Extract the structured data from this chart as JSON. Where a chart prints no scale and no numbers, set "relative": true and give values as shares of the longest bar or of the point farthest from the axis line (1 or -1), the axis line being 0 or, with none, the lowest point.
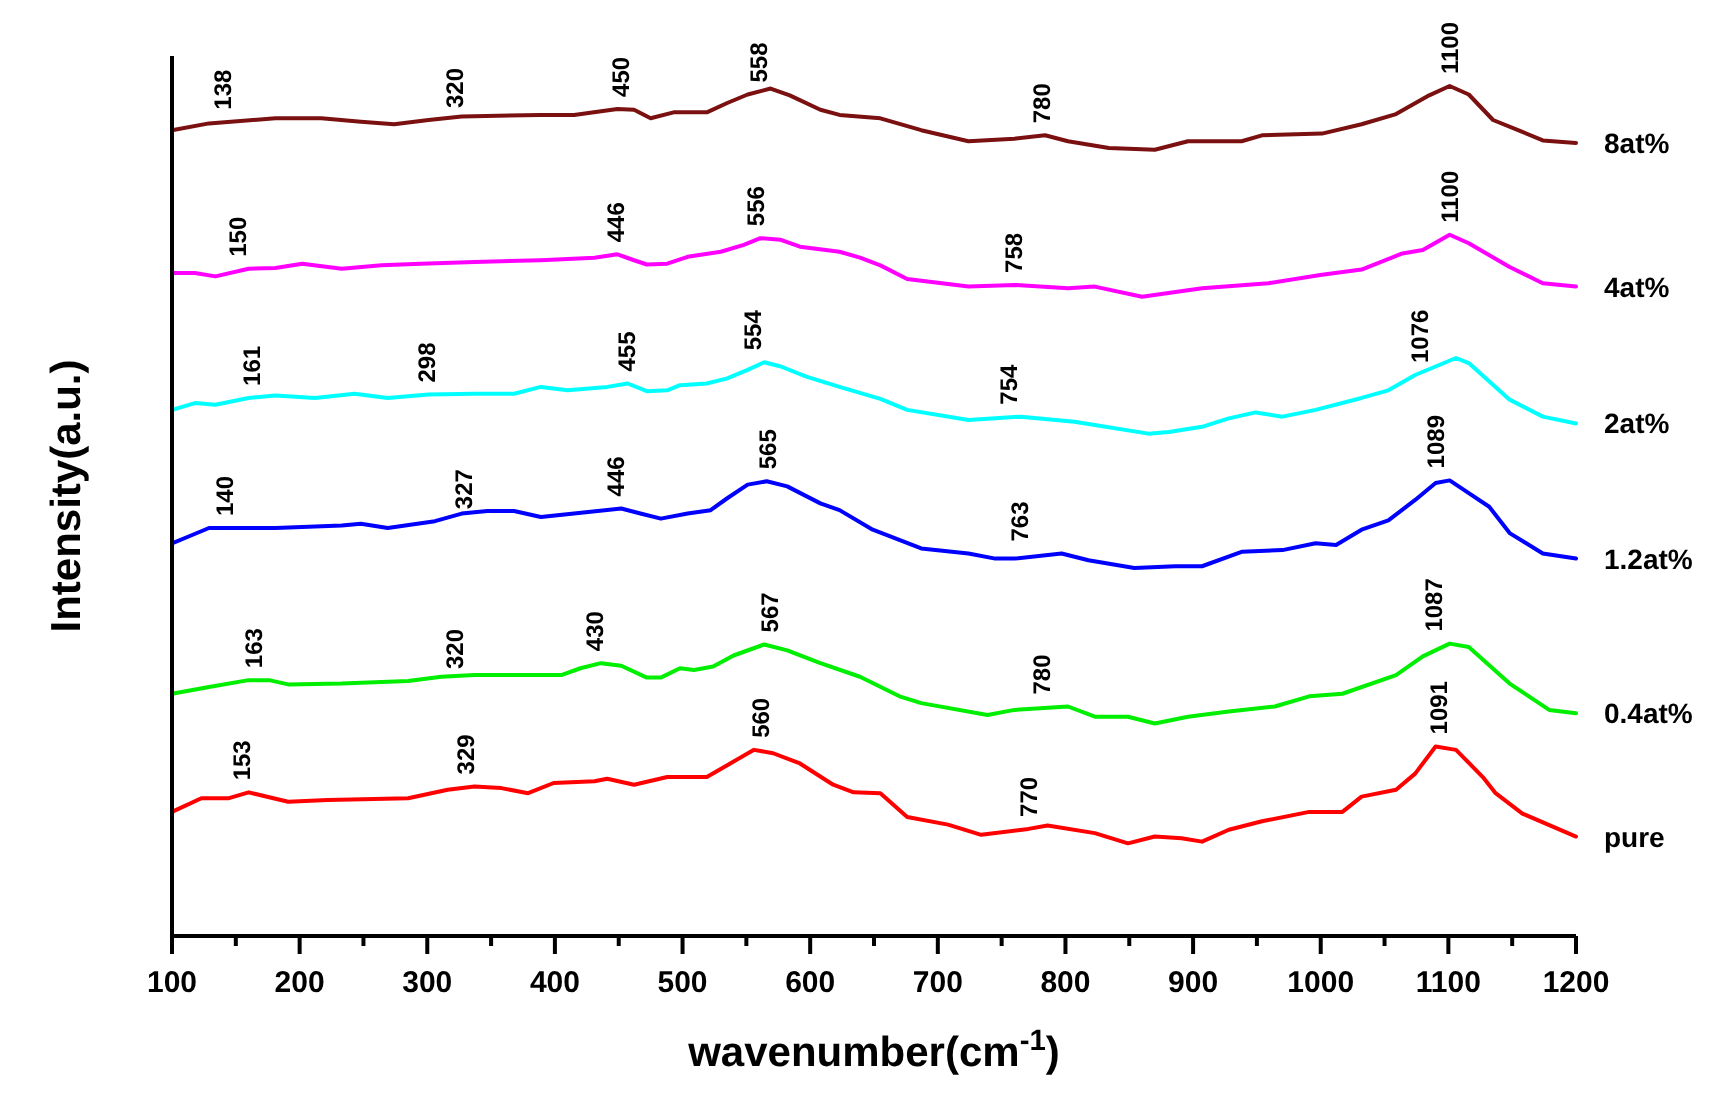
{
  "chart_data": {
    "type": "line",
    "relative": true,
    "xlabel": "wavenumber(cm$^{-1}$)",
    "ylabel": "Intensity(a.u.)",
    "xlim": [
      100,
      1200
    ],
    "xticks": [
      100,
      {
        "value": 150,
        "label": null
      },
      200,
      {
        "value": 250,
        "label": null
      },
      300,
      {
        "value": 350,
        "label": null
      },
      400,
      {
        "value": 450,
        "label": null
      },
      500,
      {
        "value": 550,
        "label": null
      },
      600,
      {
        "value": 650,
        "label": null
      },
      700,
      {
        "value": 750,
        "label": null
      },
      800,
      {
        "value": 850,
        "label": null
      },
      900,
      {
        "value": 950,
        "label": null
      },
      1000,
      {
        "value": 1050,
        "label": null
      },
      1100,
      {
        "value": 1150,
        "label": null
      },
      1200
    ],
    "grid": false,
    "marker": "none",
    "line_style": "solid",
    "series": [
      {
        "name": "8at%",
        "color": "#7b1010",
        "x": [
          100,
          129,
          181,
          217,
          248,
          274,
          301,
          327,
          389,
          415,
          449,
          462,
          475,
          493,
          519,
          535,
          551,
          569,
          584,
          608,
          623,
          655,
          687,
          724,
          760,
          784,
          802,
          834,
          870,
          896,
          938,
          954,
          1001,
          1032,
          1059,
          1085,
          1101,
          1116,
          1135,
          1158,
          1174,
          1200
        ],
        "values": [
          0.948,
          0.956,
          0.962,
          0.962,
          0.958,
          0.955,
          0.96,
          0.964,
          0.966,
          0.966,
          0.973,
          0.972,
          0.962,
          0.969,
          0.969,
          0.98,
          0.99,
          0.997,
          0.989,
          0.972,
          0.966,
          0.962,
          0.948,
          0.935,
          0.938,
          0.942,
          0.935,
          0.927,
          0.925,
          0.935,
          0.935,
          0.942,
          0.944,
          0.955,
          0.967,
          0.989,
          1,
          0.99,
          0.96,
          0.946,
          0.936,
          0.933
        ]
      },
      {
        "name": "4at%",
        "color": "#ff00ff",
        "x": [
          100,
          118,
          134,
          160,
          181,
          202,
          233,
          264,
          295,
          337,
          389,
          431,
          449,
          462,
          472,
          488,
          504,
          530,
          548,
          561,
          577,
          592,
          623,
          639,
          655,
          676,
          724,
          760,
          802,
          823,
          860,
          907,
          959,
          1001,
          1032,
          1064,
          1080,
          1101,
          1116,
          1148,
          1174,
          1200
        ],
        "values": [
          0.78,
          0.78,
          0.776,
          0.785,
          0.786,
          0.791,
          0.785,
          0.789,
          0.791,
          0.793,
          0.795,
          0.798,
          0.802,
          0.795,
          0.79,
          0.791,
          0.799,
          0.805,
          0.813,
          0.821,
          0.819,
          0.811,
          0.805,
          0.798,
          0.789,
          0.773,
          0.764,
          0.766,
          0.762,
          0.764,
          0.752,
          0.762,
          0.768,
          0.778,
          0.784,
          0.803,
          0.807,
          0.825,
          0.815,
          0.787,
          0.768,
          0.764
        ]
      },
      {
        "name": "2at%",
        "color": "#00ffff",
        "x": [
          100,
          118,
          134,
          160,
          181,
          212,
          243,
          269,
          301,
          337,
          368,
          389,
          410,
          441,
          457,
          472,
          488,
          498,
          519,
          535,
          551,
          564,
          577,
          597,
          623,
          655,
          676,
          724,
          765,
          807,
          865,
          881,
          907,
          928,
          949,
          970,
          996,
          1032,
          1053,
          1074,
          1106,
          1116,
          1148,
          1174,
          1200
        ],
        "values": [
          0.619,
          0.627,
          0.625,
          0.633,
          0.636,
          0.633,
          0.638,
          0.633,
          0.637,
          0.638,
          0.638,
          0.646,
          0.642,
          0.646,
          0.65,
          0.641,
          0.642,
          0.648,
          0.65,
          0.656,
          0.666,
          0.675,
          0.67,
          0.658,
          0.646,
          0.632,
          0.619,
          0.607,
          0.611,
          0.605,
          0.591,
          0.593,
          0.599,
          0.609,
          0.616,
          0.611,
          0.619,
          0.633,
          0.642,
          0.66,
          0.68,
          0.674,
          0.631,
          0.611,
          0.603
        ]
      },
      {
        "name": "1.2at%",
        "color": "#0000ff",
        "x": [
          100,
          113,
          129,
          181,
          233,
          248,
          269,
          306,
          327,
          347,
          368,
          389,
          415,
          452,
          467,
          483,
          504,
          522,
          535,
          551,
          566,
          582,
          608,
          623,
          649,
          687,
          724,
          745,
          760,
          797,
          818,
          854,
          886,
          907,
          938,
          970,
          996,
          1012,
          1032,
          1053,
          1074,
          1090,
          1101,
          1116,
          1132,
          1148,
          1174,
          1200
        ],
        "values": [
          0.462,
          0.47,
          0.48,
          0.48,
          0.483,
          0.485,
          0.48,
          0.488,
          0.497,
          0.5,
          0.5,
          0.493,
          0.497,
          0.503,
          0.497,
          0.491,
          0.497,
          0.501,
          0.515,
          0.531,
          0.535,
          0.529,
          0.509,
          0.501,
          0.478,
          0.456,
          0.45,
          0.444,
          0.444,
          0.45,
          0.442,
          0.433,
          0.435,
          0.435,
          0.452,
          0.454,
          0.462,
          0.46,
          0.478,
          0.489,
          0.513,
          0.533,
          0.536,
          0.521,
          0.505,
          0.474,
          0.45,
          0.444
        ]
      },
      {
        "name": "0.4at%",
        "color": "#00ee00",
        "x": [
          100,
          129,
          160,
          176,
          191,
          233,
          285,
          311,
          337,
          405,
          420,
          436,
          452,
          472,
          483,
          498,
          509,
          524,
          540,
          564,
          582,
          608,
          639,
          670,
          687,
          739,
          760,
          802,
          823,
          849,
          870,
          896,
          928,
          964,
          991,
          1017,
          1059,
          1080,
          1101,
          1116,
          1148,
          1179,
          1200
        ],
        "values": [
          0.285,
          0.293,
          0.301,
          0.301,
          0.296,
          0.297,
          0.3,
          0.305,
          0.307,
          0.307,
          0.315,
          0.321,
          0.318,
          0.304,
          0.304,
          0.315,
          0.313,
          0.317,
          0.33,
          0.343,
          0.336,
          0.321,
          0.305,
          0.282,
          0.274,
          0.26,
          0.266,
          0.27,
          0.258,
          0.258,
          0.25,
          0.258,
          0.264,
          0.27,
          0.282,
          0.285,
          0.307,
          0.329,
          0.344,
          0.34,
          0.297,
          0.266,
          0.262
        ]
      },
      {
        "name": "pure",
        "color": "#ff0000",
        "x": [
          100,
          123,
          144,
          160,
          191,
          222,
          285,
          316,
          337,
          358,
          379,
          399,
          431,
          441,
          462,
          488,
          519,
          535,
          556,
          571,
          592,
          618,
          634,
          655,
          676,
          708,
          734,
          771,
          786,
          823,
          849,
          870,
          891,
          907,
          928,
          954,
          991,
          1017,
          1032,
          1059,
          1074,
          1090,
          1106,
          1127,
          1137,
          1158,
          1200
        ],
        "values": [
          0.146,
          0.162,
          0.162,
          0.169,
          0.158,
          0.16,
          0.162,
          0.172,
          0.176,
          0.174,
          0.168,
          0.18,
          0.182,
          0.185,
          0.178,
          0.187,
          0.187,
          0.201,
          0.219,
          0.215,
          0.203,
          0.178,
          0.169,
          0.168,
          0.14,
          0.131,
          0.119,
          0.126,
          0.13,
          0.121,
          0.109,
          0.117,
          0.115,
          0.111,
          0.125,
          0.135,
          0.146,
          0.146,
          0.164,
          0.172,
          0.191,
          0.223,
          0.219,
          0.187,
          0.168,
          0.144,
          0.117
        ]
      }
    ],
    "annotations": [
      {
        "text": "138",
        "x": 138,
        "y": 0.958
      },
      {
        "text": "320",
        "x": 320,
        "y": 0.96
      },
      {
        "text": "450",
        "x": 450,
        "y": 0.973
      },
      {
        "text": "558",
        "x": 558,
        "y": 0.99
      },
      {
        "text": "780",
        "x": 780,
        "y": 0.942
      },
      {
        "text": "1100",
        "x": 1100,
        "y": 1
      },
      {
        "text": "150",
        "x": 150,
        "y": 0.785
      },
      {
        "text": "446",
        "x": 446,
        "y": 0.802
      },
      {
        "text": "556",
        "x": 556,
        "y": 0.821
      },
      {
        "text": "758",
        "x": 758,
        "y": 0.766
      },
      {
        "text": "1100",
        "x": 1100,
        "y": 0.825
      },
      {
        "text": "161",
        "x": 161,
        "y": 0.633
      },
      {
        "text": "298",
        "x": 298,
        "y": 0.637
      },
      {
        "text": "455",
        "x": 455,
        "y": 0.65
      },
      {
        "text": "554",
        "x": 554,
        "y": 0.675
      },
      {
        "text": "754",
        "x": 754,
        "y": 0.611
      },
      {
        "text": "1076",
        "x": 1076,
        "y": 0.66
      },
      {
        "text": "140",
        "x": 140,
        "y": 0.48
      },
      {
        "text": "327",
        "x": 327,
        "y": 0.488
      },
      {
        "text": "446",
        "x": 446,
        "y": 0.503
      },
      {
        "text": "565",
        "x": 565,
        "y": 0.535
      },
      {
        "text": "763",
        "x": 763,
        "y": 0.45
      },
      {
        "text": "1089",
        "x": 1089,
        "y": 0.536
      },
      {
        "text": "163",
        "x": 163,
        "y": 0.301
      },
      {
        "text": "320",
        "x": 320,
        "y": 0.3
      },
      {
        "text": "430",
        "x": 430,
        "y": 0.321
      },
      {
        "text": "567",
        "x": 567,
        "y": 0.343
      },
      {
        "text": "780",
        "x": 780,
        "y": 0.27
      },
      {
        "text": "1087",
        "x": 1087,
        "y": 0.344
      },
      {
        "text": "153",
        "x": 153,
        "y": 0.169
      },
      {
        "text": "329",
        "x": 329,
        "y": 0.176
      },
      {
        "text": "560",
        "x": 560,
        "y": 0.219
      },
      {
        "text": "770",
        "x": 770,
        "y": 0.126
      },
      {
        "text": "1091",
        "x": 1091,
        "y": 0.223
      }
    ]
  }
}
